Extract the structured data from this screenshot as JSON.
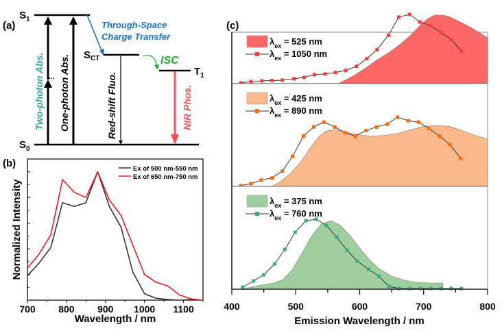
{
  "figure": {
    "panel_labels": {
      "a": "(a)",
      "b": "(b)",
      "c": "(c)"
    }
  },
  "diagram": {
    "levels": {
      "s1": {
        "label": "S",
        "sub": "1"
      },
      "s0": {
        "label": "S",
        "sub": "0"
      },
      "sct": {
        "label": "S",
        "sub": "CT"
      },
      "t1": {
        "label": "T",
        "sub": "1"
      }
    },
    "texts": {
      "two_photon": "Two-photon Abs.",
      "one_photon": "One-photon Abs.",
      "red_shift": "Red-shift Fluo.",
      "nir": "NIR Phos.",
      "tsct_line1": "Through-Space",
      "tsct_line2": "Charge Transfer",
      "isc": "ISC",
      "dots": "..."
    },
    "colors": {
      "two_photon": "#2aa89a",
      "tsct": "#1a6fc4",
      "isc": "#22aa33",
      "nir": "#ff4f5a",
      "level": "#000000"
    }
  },
  "chart_data": [
    {
      "id": "b",
      "type": "line",
      "title": "",
      "xlabel": "Wavelength / nm",
      "ylabel": "Normalized Intensity",
      "xlim": [
        700,
        1150
      ],
      "ylim": [
        0,
        1.1
      ],
      "xticks": [
        700,
        800,
        900,
        1000,
        1100
      ],
      "xtick_labels": [
        "700",
        "800",
        "900",
        "1000",
        "1100"
      ],
      "yticks": [
        0,
        0.2,
        0.4,
        0.6,
        0.8,
        1.0
      ],
      "ytick_labels_visible": false,
      "legend_position": "top-right",
      "x": [
        700,
        730,
        760,
        790,
        820,
        850,
        880,
        910,
        940,
        970,
        1000,
        1030,
        1060,
        1090,
        1120,
        1150
      ],
      "series": [
        {
          "name": "Ex of 500 nm-550 nm",
          "color": "#333333",
          "values": [
            0.19,
            0.29,
            0.41,
            0.76,
            0.73,
            0.76,
            1.0,
            0.73,
            0.57,
            0.22,
            0.05,
            0.015,
            0.005,
            0.0,
            0.005,
            0.0
          ]
        },
        {
          "name": "Ex of 650 nm-750 nm",
          "color": "#e8191c",
          "values": [
            0.25,
            0.36,
            0.51,
            0.94,
            0.84,
            0.8,
            1.0,
            0.78,
            0.66,
            0.43,
            0.2,
            0.14,
            0.11,
            0.04,
            0.01,
            0.0
          ]
        }
      ]
    },
    {
      "id": "c",
      "type": "area",
      "title": "",
      "xlabel": "Emission Wavelength / nm",
      "ylabel": "",
      "xlim": [
        400,
        800
      ],
      "xticks": [
        400,
        500,
        600,
        700,
        800
      ],
      "xtick_labels": [
        "400",
        "500",
        "600",
        "700",
        "800"
      ],
      "stacked_subplots": [
        {
          "fill": {
            "name": "λex = 525 nm",
            "legend_lambda": "λ",
            "legend_sub": "ex",
            "legend_value": " = 525 nm",
            "color": "#ff6666",
            "x": [
              566,
              580,
              595,
              610,
              625,
              646,
              665,
              681,
              695,
              705,
              717,
              731,
              742,
              753,
              774,
              790,
              800
            ],
            "y": [
              0.0,
              0.06,
              0.14,
              0.23,
              0.33,
              0.45,
              0.58,
              0.71,
              0.85,
              0.93,
              0.99,
              0.99,
              0.96,
              0.91,
              0.81,
              0.72,
              0.66
            ]
          },
          "line": {
            "name": "λex = 1050 nm",
            "legend_lambda": "λ",
            "legend_sub": "ex",
            "legend_value": " = 1050 nm",
            "color": "#333333",
            "marker_color": "#ff3b3b",
            "x": [
              414,
              430,
              447,
              463,
              479,
              497,
              513,
              529,
              546,
              562,
              578,
              595,
              611,
              627,
              645,
              661,
              678,
              694,
              710,
              727,
              743,
              759
            ],
            "y": [
              0.01,
              0.03,
              0.04,
              0.045,
              0.05,
              0.07,
              0.09,
              0.13,
              0.14,
              0.16,
              0.19,
              0.25,
              0.36,
              0.49,
              0.7,
              0.96,
              1.0,
              0.89,
              0.84,
              0.74,
              0.64,
              0.47
            ]
          }
        },
        {
          "fill": {
            "name": "λex = 425 nm",
            "legend_lambda": "λ",
            "legend_sub": "ex",
            "legend_value": " = 425 nm",
            "color": "#f9b98a",
            "x": [
              462,
              475,
              490,
              505,
              515,
              525,
              535,
              547,
              560,
              575,
              590,
              605,
              620,
              640,
              660,
              680,
              700,
              720,
              740,
              760,
              780,
              800
            ],
            "y": [
              0.0,
              0.06,
              0.17,
              0.32,
              0.44,
              0.58,
              0.7,
              0.79,
              0.81,
              0.79,
              0.75,
              0.73,
              0.72,
              0.73,
              0.76,
              0.81,
              0.86,
              0.87,
              0.86,
              0.8,
              0.73,
              0.68
            ]
          },
          "line": {
            "name": "λex = 890 nm",
            "legend_lambda": "λ",
            "legend_sub": "ex",
            "legend_value": " = 890 nm",
            "color": "#333333",
            "marker_color": "#ff6a00",
            "x": [
              414,
              430,
              446,
              463,
              479,
              495,
              512,
              528,
              544,
              561,
              577,
              593,
              610,
              626,
              643,
              659,
              676,
              692,
              708,
              725,
              741,
              758
            ],
            "y": [
              0.01,
              0.04,
              0.09,
              0.12,
              0.22,
              0.43,
              0.72,
              0.85,
              0.92,
              0.85,
              0.77,
              0.72,
              0.8,
              0.85,
              0.89,
              0.99,
              0.94,
              0.92,
              0.83,
              0.72,
              0.6,
              0.4
            ]
          }
        },
        {
          "fill": {
            "name": "λex = 375 nm",
            "legend_lambda": "λ",
            "legend_sub": "ex",
            "legend_value": " = 375 nm",
            "color": "#9fcf9f",
            "x": [
              417,
              440,
              465,
              480,
              495,
              510,
              525,
              540,
              555,
              570,
              585,
              600,
              615,
              630,
              650,
              670,
              690,
              711,
              725,
              730,
              730
            ],
            "y": [
              0.0,
              0.05,
              0.09,
              0.14,
              0.29,
              0.53,
              0.78,
              0.95,
              1.0,
              0.93,
              0.78,
              0.6,
              0.43,
              0.3,
              0.19,
              0.13,
              0.1,
              0.09,
              0.09,
              0.09,
              0.0
            ]
          },
          "line": {
            "name": "λex = 760 nm",
            "legend_lambda": "λ",
            "legend_sub": "ex",
            "legend_value": " = 760 nm",
            "color": "#333333",
            "marker_color": "#3aa88a",
            "x": [
              417,
              434,
              450,
              467,
              483,
              499,
              516,
              532,
              548,
              564,
              580,
              596,
              614,
              630,
              646,
              662,
              678,
              695,
              711,
              727,
              743,
              759
            ],
            "y": [
              0.03,
              0.12,
              0.21,
              0.37,
              0.58,
              0.83,
              1.0,
              1.02,
              0.93,
              0.76,
              0.57,
              0.41,
              0.29,
              0.19,
              0.04,
              0.01,
              0.01,
              0.01,
              0.01,
              0.01,
              0.01,
              0.01
            ]
          }
        }
      ]
    }
  ]
}
